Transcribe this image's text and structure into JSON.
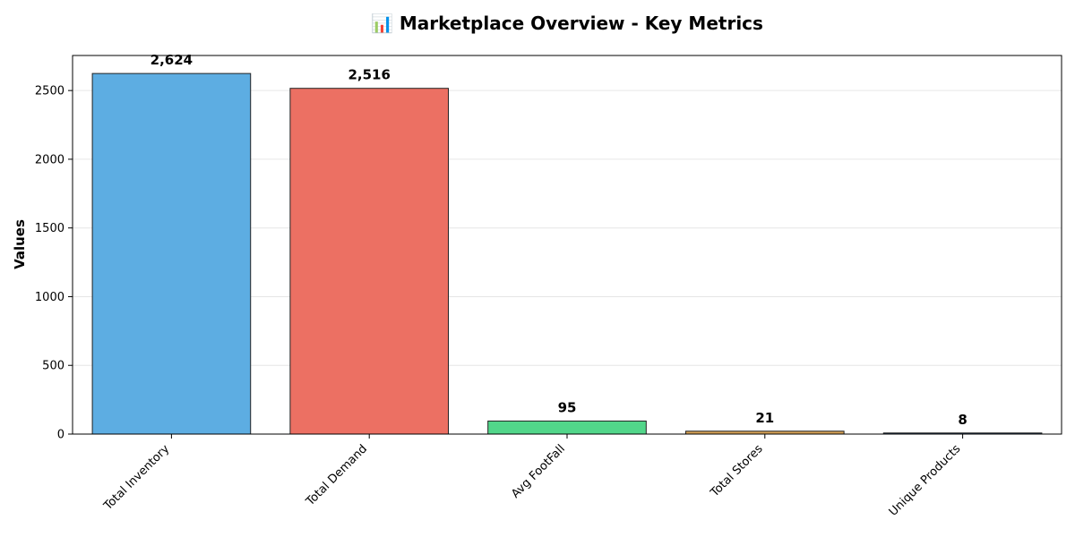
{
  "chart_data": {
    "type": "bar",
    "title": "📊 Marketplace Overview - Key Metrics",
    "xlabel": "",
    "ylabel": "Values",
    "categories": [
      "Total Inventory",
      "Total Demand",
      "Avg FootFall",
      "Total Stores",
      "Unique Products"
    ],
    "values": [
      2624,
      2516,
      95,
      21,
      8
    ],
    "value_labels": [
      "2,624",
      "2,516",
      "95",
      "21",
      "8"
    ],
    "colors": [
      "#5DADE2",
      "#EC7063",
      "#52D68A",
      "#D4A055",
      "#1F4E79"
    ],
    "ylim": [
      0,
      2755
    ],
    "yticks": [
      0,
      500,
      1000,
      1500,
      2000,
      2500
    ],
    "ytick_labels": [
      "0",
      "500",
      "1000",
      "1500",
      "2000",
      "2500"
    ],
    "grid": "y-major",
    "legend": "none"
  }
}
